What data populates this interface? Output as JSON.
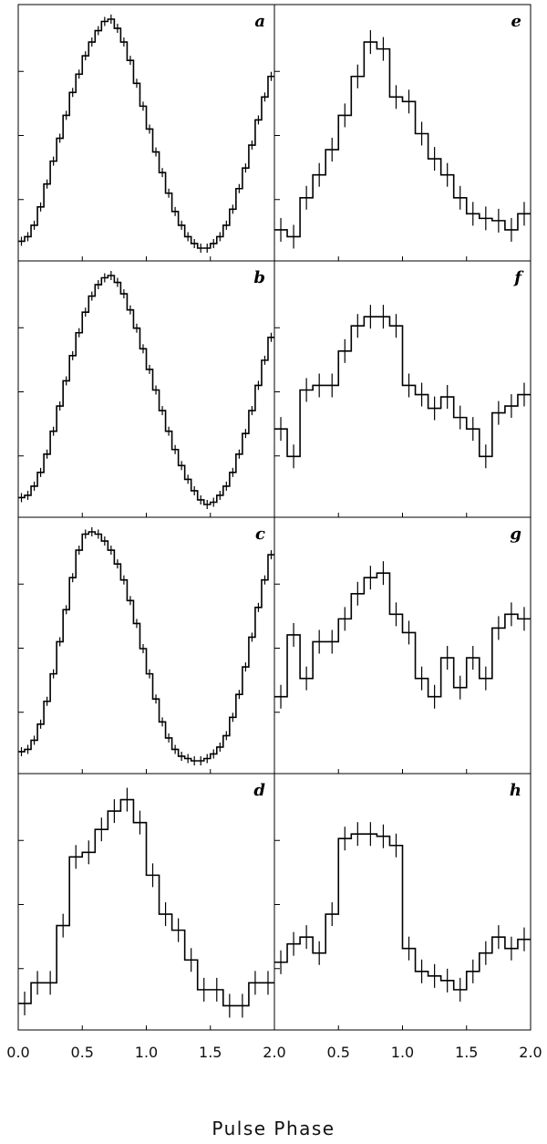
{
  "figure": {
    "xlabel": "Pulse Phase"
  },
  "chart_data": {
    "type": "line",
    "layout": "4x2 grid of panels, columns share x axis",
    "xlim": [
      0.0,
      2.0
    ],
    "x_ticks": [
      "0.0",
      "0.5",
      "1.0",
      "1.5",
      "2.0"
    ],
    "xlabel": "Pulse Phase",
    "panels": [
      {
        "label": "a",
        "bins": 40,
        "bars": true,
        "values": [
          0.03,
          0.05,
          0.1,
          0.18,
          0.28,
          0.38,
          0.48,
          0.58,
          0.68,
          0.76,
          0.84,
          0.9,
          0.95,
          0.99,
          1.0,
          0.96,
          0.9,
          0.82,
          0.72,
          0.62,
          0.52,
          0.42,
          0.33,
          0.24,
          0.16,
          0.1,
          0.05,
          0.02,
          0.0,
          0.0,
          0.02,
          0.05,
          0.1,
          0.17,
          0.26,
          0.35,
          0.45,
          0.56,
          0.66,
          0.75
        ]
      },
      {
        "label": "b",
        "bins": 40,
        "bars": true,
        "values": [
          0.03,
          0.04,
          0.08,
          0.14,
          0.22,
          0.32,
          0.43,
          0.54,
          0.65,
          0.75,
          0.84,
          0.91,
          0.96,
          0.99,
          1.0,
          0.97,
          0.92,
          0.85,
          0.77,
          0.68,
          0.59,
          0.5,
          0.41,
          0.32,
          0.24,
          0.17,
          0.11,
          0.06,
          0.02,
          0.0,
          0.01,
          0.04,
          0.08,
          0.14,
          0.22,
          0.31,
          0.41,
          0.52,
          0.63,
          0.73
        ]
      },
      {
        "label": "c",
        "bins": 40,
        "bars": true,
        "values": [
          0.04,
          0.05,
          0.09,
          0.16,
          0.26,
          0.38,
          0.52,
          0.66,
          0.8,
          0.92,
          0.99,
          1.0,
          0.99,
          0.96,
          0.92,
          0.86,
          0.79,
          0.7,
          0.6,
          0.49,
          0.38,
          0.27,
          0.17,
          0.1,
          0.05,
          0.02,
          0.01,
          0.0,
          0.0,
          0.01,
          0.03,
          0.06,
          0.11,
          0.19,
          0.29,
          0.41,
          0.54,
          0.67,
          0.79,
          0.9
        ]
      },
      {
        "label": "d",
        "bins": 20,
        "bars": true,
        "values": [
          0.06,
          0.15,
          0.15,
          0.4,
          0.7,
          0.72,
          0.82,
          0.9,
          0.95,
          0.85,
          0.62,
          0.45,
          0.38,
          0.25,
          0.12,
          0.12,
          0.05,
          0.05,
          0.15,
          0.15
        ]
      },
      {
        "label": "e",
        "bins": 20,
        "bars": true,
        "values": [
          0.08,
          0.05,
          0.22,
          0.32,
          0.43,
          0.58,
          0.75,
          0.9,
          0.87,
          0.66,
          0.64,
          0.5,
          0.39,
          0.32,
          0.22,
          0.15,
          0.13,
          0.12,
          0.08,
          0.15
        ]
      },
      {
        "label": "f",
        "bins": 20,
        "bars": true,
        "values": [
          0.33,
          0.21,
          0.5,
          0.52,
          0.52,
          0.67,
          0.78,
          0.82,
          0.82,
          0.78,
          0.52,
          0.48,
          0.42,
          0.47,
          0.38,
          0.33,
          0.21,
          0.4,
          0.43,
          0.48
        ]
      },
      {
        "label": "g",
        "bins": 20,
        "bars": true,
        "values": [
          0.28,
          0.55,
          0.36,
          0.52,
          0.52,
          0.62,
          0.73,
          0.8,
          0.82,
          0.64,
          0.56,
          0.36,
          0.28,
          0.45,
          0.32,
          0.45,
          0.36,
          0.58,
          0.64,
          0.62
        ]
      },
      {
        "label": "h",
        "bins": 20,
        "bars": true,
        "values": [
          0.24,
          0.32,
          0.35,
          0.28,
          0.45,
          0.78,
          0.8,
          0.8,
          0.79,
          0.75,
          0.3,
          0.2,
          0.18,
          0.16,
          0.12,
          0.2,
          0.28,
          0.35,
          0.3,
          0.34
        ]
      }
    ]
  }
}
